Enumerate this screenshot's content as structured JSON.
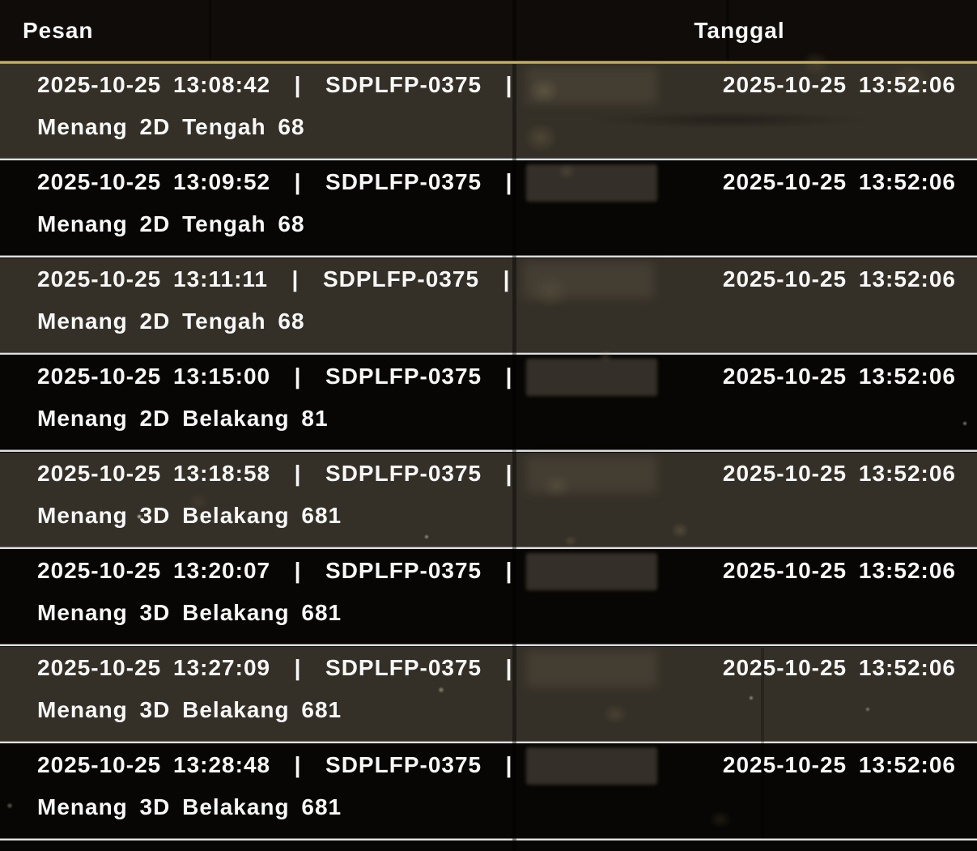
{
  "table": {
    "columns": [
      {
        "label": "Pesan"
      },
      {
        "label": "Tanggal"
      }
    ],
    "rows": [
      {
        "meta": "2025-10-25 13:08:42  |  SDPLFP-0375  |",
        "message": "Menang 2D Tengah 68",
        "date": "2025-10-25 13:52:06",
        "redacted": true
      },
      {
        "meta": "2025-10-25 13:09:52  |  SDPLFP-0375  |",
        "message": "Menang 2D Tengah 68",
        "date": "2025-10-25 13:52:06",
        "redacted": true
      },
      {
        "meta": "2025-10-25 13:11:11  |  SDPLFP-0375  |",
        "message": "Menang 2D Tengah 68",
        "date": "2025-10-25 13:52:06",
        "redacted": true
      },
      {
        "meta": "2025-10-25 13:15:00  |  SDPLFP-0375  |",
        "message": "Menang 2D Belakang 81",
        "date": "2025-10-25 13:52:06",
        "redacted": true
      },
      {
        "meta": "2025-10-25 13:18:58  |  SDPLFP-0375  |",
        "message": "Menang 3D Belakang 681",
        "date": "2025-10-25 13:52:06",
        "redacted": true
      },
      {
        "meta": "2025-10-25 13:20:07  |  SDPLFP-0375  |",
        "message": "Menang 3D Belakang 681",
        "date": "2025-10-25 13:52:06",
        "redacted": true
      },
      {
        "meta": "2025-10-25 13:27:09  |  SDPLFP-0375  |",
        "message": "Menang 3D Belakang 681",
        "date": "2025-10-25 13:52:06",
        "redacted": true
      },
      {
        "meta": "2025-10-25 13:28:48  |  SDPLFP-0375  |",
        "message": "Menang 3D Belakang 681",
        "date": "2025-10-25 13:52:06",
        "redacted": true
      }
    ]
  },
  "colors": {
    "background": "#0f0c09",
    "row_light": "#352f27",
    "row_dark": "#0a0807",
    "header_divider_gold": "#d2bc68",
    "row_separator_silver": "#e0e0e0",
    "text": "#f7f7f7"
  }
}
